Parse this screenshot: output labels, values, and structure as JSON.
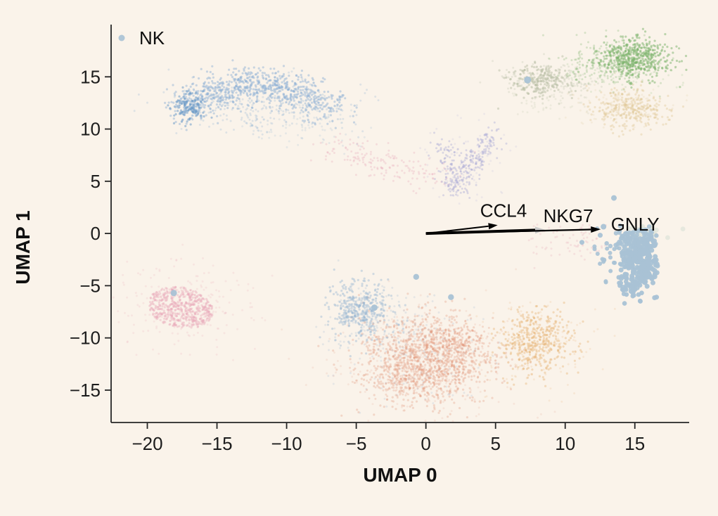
{
  "colors": {
    "background": "#faf3ea",
    "axis": "#262626",
    "text": "#111111"
  },
  "chart_data": {
    "type": "scatter",
    "title": "",
    "xlabel": "UMAP 0",
    "ylabel": "UMAP 1",
    "xlim": [
      -22.6,
      18.9
    ],
    "ylim": [
      -18.1,
      20.0
    ],
    "xticks": [
      -20,
      -15,
      -10,
      -5,
      0,
      5,
      10,
      15
    ],
    "yticks": [
      15,
      10,
      5,
      0,
      -5,
      -10,
      -15
    ],
    "grid": false,
    "legend_position": "upper-left-inside",
    "legend": [
      {
        "label": "NK",
        "color": "#a9c2d5",
        "marker_r": 4.5
      }
    ],
    "description": "UMAP embedding of single cells; NK cluster highlighted with larger blue dots; other clusters shown as faint background points; gene loading arrows from origin for CCL4, NKG7, GNLY.",
    "background_clusters": [
      {
        "name": "b-cell-arch",
        "shape": "path",
        "color": "#8bb0d4",
        "alpha": 0.45,
        "r": 1.6,
        "count": 850,
        "points": [
          [
            -17.2,
            11.8
          ],
          [
            -15.5,
            13.2
          ],
          [
            -13.3,
            14.2
          ],
          [
            -11.0,
            14.2
          ],
          [
            -9.0,
            13.3
          ],
          [
            -7.0,
            11.9
          ]
        ],
        "jx": 1.1,
        "jy": 0.85
      },
      {
        "name": "b-cell-arch-tip",
        "shape": "gauss",
        "color": "#6f9cc8",
        "alpha": 0.55,
        "r": 1.6,
        "count": 130,
        "cx": -17.0,
        "cy": 12.2,
        "sx": 0.55,
        "sy": 0.75
      },
      {
        "name": "b-cell-arch-fill",
        "shape": "gauss",
        "color": "#8bb0d4",
        "alpha": 0.25,
        "r": 1.5,
        "count": 260,
        "cx": -11.8,
        "cy": 12.2,
        "sx": 3.2,
        "sy": 1.3
      },
      {
        "name": "b-cell-arch-trail",
        "shape": "gauss",
        "color": "#8bb0d4",
        "alpha": 0.18,
        "r": 1.5,
        "count": 90,
        "cx": -8.5,
        "cy": 10.6,
        "sx": 2.2,
        "sy": 1.0
      },
      {
        "name": "pink-left-disk",
        "shape": "disk",
        "color": "#e8a8b8",
        "alpha": 0.4,
        "r": 1.6,
        "count": 520,
        "cx": -17.6,
        "cy": -7.1,
        "rx": 2.4,
        "ry": 1.9,
        "rot": -25
      },
      {
        "name": "pink-left-halo",
        "shape": "gauss",
        "color": "#e8a8b8",
        "alpha": 0.18,
        "r": 1.5,
        "count": 200,
        "cx": -17.5,
        "cy": -7.0,
        "sx": 2.6,
        "sy": 2.3
      },
      {
        "name": "pink-band",
        "shape": "path",
        "color": "#e8a8b8",
        "alpha": 0.3,
        "r": 1.5,
        "count": 170,
        "points": [
          [
            -6.3,
            8.8
          ],
          [
            -4.3,
            7.2
          ],
          [
            -1.8,
            6.2
          ],
          [
            0.6,
            5.2
          ]
        ],
        "jx": 1.0,
        "jy": 0.75
      },
      {
        "name": "lavender-v",
        "shape": "path",
        "color": "#a9a9d6",
        "alpha": 0.4,
        "r": 1.5,
        "count": 300,
        "points": [
          [
            1.35,
            8.9
          ],
          [
            1.75,
            6.3
          ],
          [
            2.1,
            4.2
          ],
          [
            2.9,
            6.0
          ],
          [
            3.8,
            7.7
          ],
          [
            4.75,
            9.3
          ]
        ],
        "jx": 0.5,
        "jy": 0.55
      },
      {
        "name": "lavender-halo",
        "shape": "gauss",
        "color": "#a9a9d6",
        "alpha": 0.15,
        "r": 1.5,
        "count": 80,
        "cx": 2.8,
        "cy": 6.8,
        "sx": 1.5,
        "sy": 1.8
      },
      {
        "name": "olive-core",
        "shape": "gauss",
        "color": "#b9c0a6",
        "alpha": 0.5,
        "r": 1.6,
        "count": 210,
        "cx": 8.2,
        "cy": 14.7,
        "sx": 1.0,
        "sy": 0.85
      },
      {
        "name": "olive-spread",
        "shape": "path",
        "color": "#b9c0a6",
        "alpha": 0.25,
        "r": 1.5,
        "count": 170,
        "points": [
          [
            6.3,
            14.3
          ],
          [
            8.2,
            14.9
          ],
          [
            10.2,
            14.6
          ],
          [
            11.6,
            14.1
          ]
        ],
        "jx": 1.0,
        "jy": 0.8
      },
      {
        "name": "olive-below",
        "shape": "gauss",
        "color": "#b9c0a6",
        "alpha": 0.18,
        "r": 1.5,
        "count": 60,
        "cx": 8.6,
        "cy": 12.9,
        "sx": 1.6,
        "sy": 0.8
      },
      {
        "name": "green-core",
        "shape": "gauss",
        "color": "#7cb46c",
        "alpha": 0.5,
        "r": 1.6,
        "count": 480,
        "cx": 15.0,
        "cy": 16.8,
        "sx": 1.35,
        "sy": 0.95
      },
      {
        "name": "green-spread",
        "shape": "gauss",
        "color": "#7cb46c",
        "alpha": 0.28,
        "r": 1.5,
        "count": 240,
        "cx": 13.3,
        "cy": 16.3,
        "sx": 1.7,
        "sy": 1.1
      },
      {
        "name": "green-sparse",
        "shape": "gauss",
        "color": "#7cb46c",
        "alpha": 0.16,
        "r": 1.5,
        "count": 90,
        "cx": 14.6,
        "cy": 15.3,
        "sx": 2.0,
        "sy": 0.9
      },
      {
        "name": "tan-right",
        "shape": "gauss",
        "color": "#dcc28c",
        "alpha": 0.35,
        "r": 1.6,
        "count": 300,
        "cx": 14.7,
        "cy": 11.9,
        "sx": 1.35,
        "sy": 0.95
      },
      {
        "name": "tan-right-halo",
        "shape": "gauss",
        "color": "#dcc28c",
        "alpha": 0.16,
        "r": 1.5,
        "count": 90,
        "cx": 13.8,
        "cy": 12.3,
        "sx": 2.0,
        "sy": 1.2
      },
      {
        "name": "blue-bottom",
        "shape": "gauss",
        "color": "#96b6d2",
        "alpha": 0.42,
        "r": 1.6,
        "count": 380,
        "cx": -4.7,
        "cy": -7.2,
        "sx": 1.15,
        "sy": 1.5
      },
      {
        "name": "blue-bottom-spread",
        "shape": "gauss",
        "color": "#96b6d2",
        "alpha": 0.22,
        "r": 1.5,
        "count": 140,
        "cx": -3.6,
        "cy": -8.4,
        "sx": 1.8,
        "sy": 1.8
      },
      {
        "name": "blue-specks-in-salmon",
        "shape": "gauss",
        "color": "#96b6d2",
        "alpha": 0.2,
        "r": 1.5,
        "count": 170,
        "cx": -0.6,
        "cy": -11.6,
        "sx": 2.8,
        "sy": 2.4
      },
      {
        "name": "salmon-main",
        "shape": "gauss",
        "color": "#e29476",
        "alpha": 0.3,
        "r": 1.6,
        "count": 1150,
        "cx": 0.0,
        "cy": -12.1,
        "sx": 2.25,
        "sy": 2.05
      },
      {
        "name": "salmon-lobe-right",
        "shape": "gauss",
        "color": "#e29476",
        "alpha": 0.28,
        "r": 1.5,
        "count": 200,
        "cx": 2.3,
        "cy": -10.4,
        "sx": 1.2,
        "sy": 1.0
      },
      {
        "name": "salmon-lobe-bottom",
        "shape": "gauss",
        "color": "#e29476",
        "alpha": 0.26,
        "r": 1.5,
        "count": 160,
        "cx": -1.8,
        "cy": -14.0,
        "sx": 1.4,
        "sy": 0.9
      },
      {
        "name": "salmon-halo",
        "shape": "gauss",
        "color": "#e29476",
        "alpha": 0.14,
        "r": 1.5,
        "count": 280,
        "cx": -0.3,
        "cy": -11.6,
        "sx": 3.3,
        "sy": 2.9
      },
      {
        "name": "orange-core",
        "shape": "gauss",
        "color": "#e7b478",
        "alpha": 0.42,
        "r": 1.6,
        "count": 430,
        "cx": 7.9,
        "cy": -10.4,
        "sx": 1.25,
        "sy": 1.5
      },
      {
        "name": "orange-halo",
        "shape": "gauss",
        "color": "#e7b478",
        "alpha": 0.18,
        "r": 1.5,
        "count": 140,
        "cx": 7.5,
        "cy": -10.8,
        "sx": 2.1,
        "sy": 2.2
      },
      {
        "name": "pink-specks-near-nk",
        "shape": "gauss",
        "color": "#e8a8b8",
        "alpha": 0.25,
        "r": 1.5,
        "count": 80,
        "cx": 10.3,
        "cy": -0.8,
        "sx": 1.5,
        "sy": 0.9
      },
      {
        "name": "graygreen-patch-on-nk",
        "shape": "gauss",
        "color": "#dfe4da",
        "alpha": 0.75,
        "r": 3.4,
        "count": 34,
        "cx": 15.7,
        "cy": 0.15,
        "sx": 0.85,
        "sy": 0.3
      }
    ],
    "nk_cluster": {
      "label": "NK",
      "color": "#a9c2d5",
      "blobs": [
        {
          "cx": 15.5,
          "cy": -2.7,
          "sx": 0.78,
          "sy": 1.2,
          "count": 250,
          "r": 3.5,
          "alpha": 0.95
        },
        {
          "cx": 15.2,
          "cy": -0.5,
          "sx": 1.0,
          "sy": 0.45,
          "count": 70,
          "r": 3.2,
          "alpha": 0.9
        },
        {
          "cx": 13.9,
          "cy": -2.1,
          "sx": 0.85,
          "sy": 1.2,
          "count": 38,
          "r": 3.0,
          "alpha": 0.9
        },
        {
          "cx": 14.8,
          "cy": -5.0,
          "sx": 0.55,
          "sy": 0.7,
          "count": 45,
          "r": 3.3,
          "alpha": 0.95
        }
      ],
      "outliers": [
        [
          7.3,
          14.7,
          5.0
        ],
        [
          -18.1,
          -5.7,
          4.5
        ],
        [
          -0.7,
          -4.15,
          4.2
        ],
        [
          1.8,
          -6.1,
          4.2
        ],
        [
          -3.7,
          -7.1,
          4.5
        ],
        [
          12.75,
          0.65,
          4.0
        ],
        [
          13.5,
          3.4,
          4.0
        ],
        [
          11.2,
          -0.85,
          3.5
        ]
      ]
    },
    "arrows": [
      {
        "gene": "CCL4",
        "from": [
          0,
          0
        ],
        "to": [
          5.15,
          0.8
        ],
        "width": 2.0,
        "head_len": 13,
        "head_w": 9,
        "color": "#000000",
        "head_color": "#000000",
        "label_xy": [
          5.57,
          1.6
        ]
      },
      {
        "gene": "NKG7",
        "from": [
          0,
          0
        ],
        "to": [
          8.55,
          0.35
        ],
        "width": 4.0,
        "head_len": 14,
        "head_w": 10,
        "color": "#000000",
        "head_color": "#c9c9c9",
        "label_xy": [
          10.22,
          1.08
        ]
      },
      {
        "gene": "GNLY",
        "from": [
          0,
          0
        ],
        "to": [
          12.55,
          0.4
        ],
        "width": 2.2,
        "head_len": 14,
        "head_w": 9,
        "color": "#000000",
        "head_color": "#000000",
        "label_xy": [
          15.02,
          0.27
        ]
      }
    ]
  }
}
